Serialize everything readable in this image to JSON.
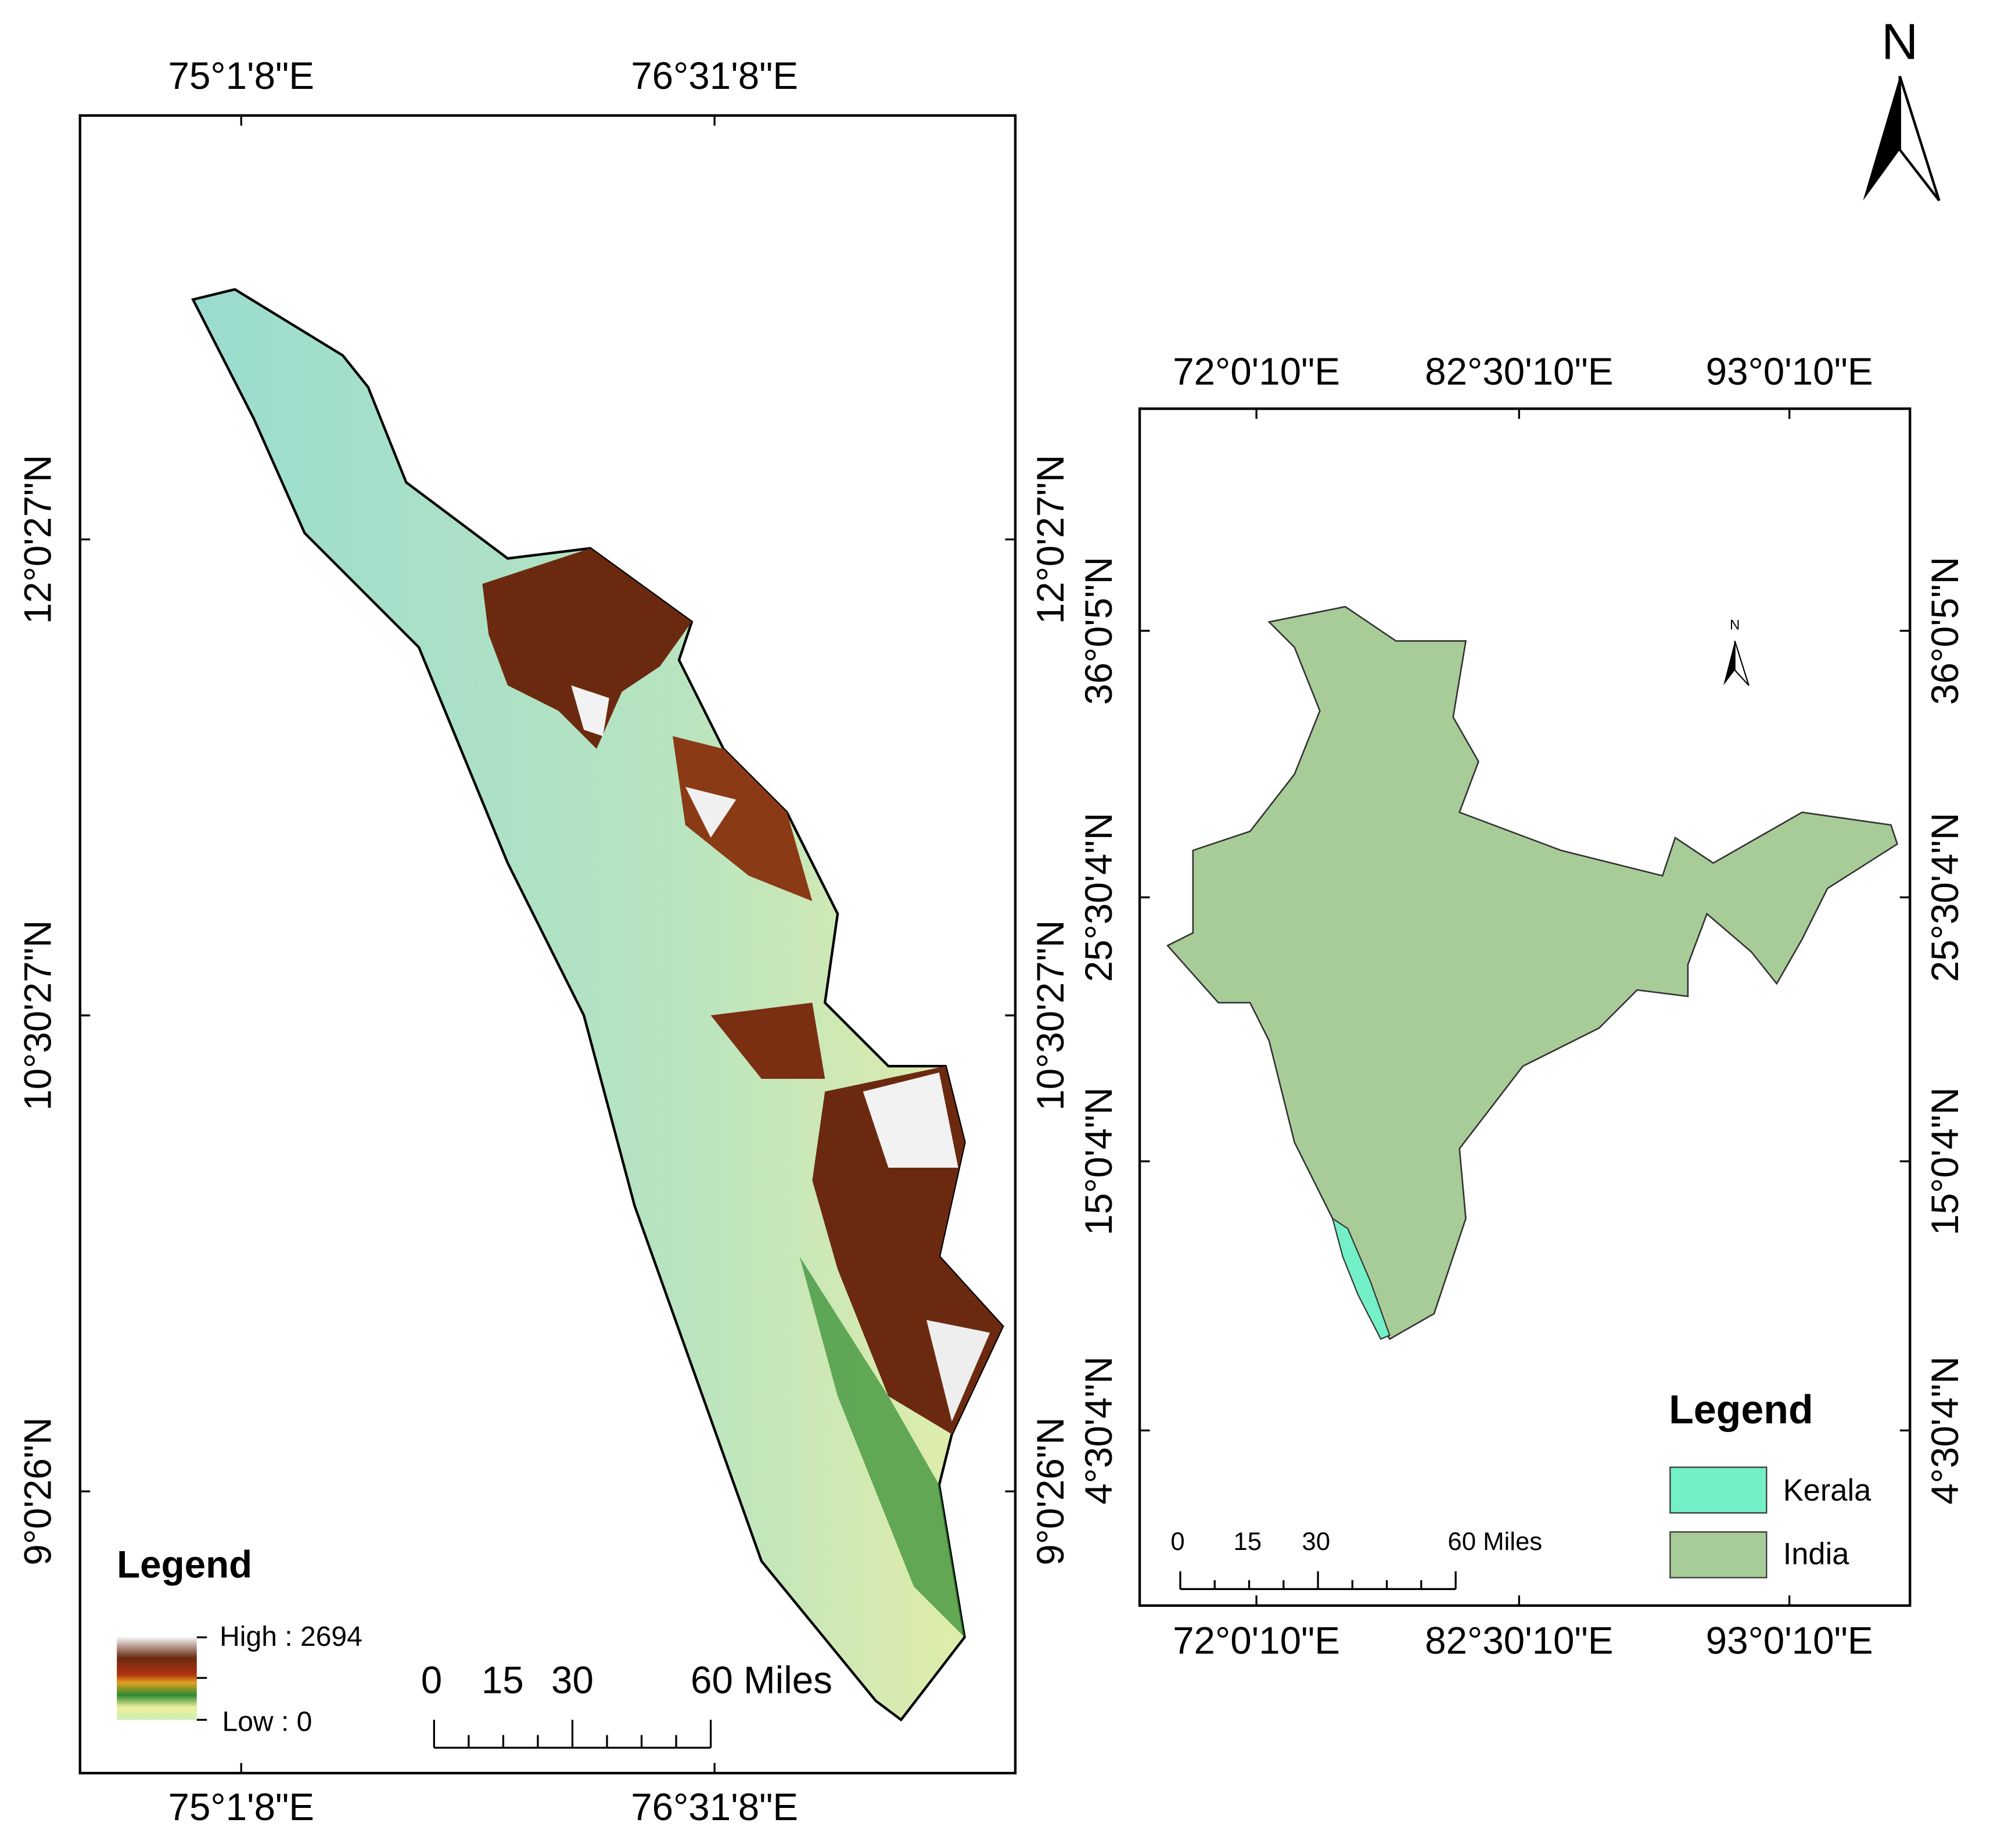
{
  "north_arrow": "N",
  "kerala_map": {
    "lon_labels": [
      "75°1'8\"E",
      "76°31'8\"E"
    ],
    "lat_labels": [
      "12°0'27\"N",
      "10°30'27\"N",
      "9°0'26\"N"
    ],
    "legend": {
      "title": "Legend",
      "high": "High : 2694",
      "low": "Low : 0"
    },
    "scale_bar": [
      "0",
      "15",
      "30",
      "60 Miles"
    ]
  },
  "india_map": {
    "lon_labels": [
      "72°0'10\"E",
      "82°30'10\"E",
      "93°0'10\"E"
    ],
    "lat_labels": [
      "36°0'5\"N",
      "25°30'4\"N",
      "15°0'4\"N",
      "4°30'4\"N"
    ],
    "north_arrow": "N",
    "legend": {
      "title": "Legend",
      "items": [
        "Kerala",
        "India"
      ]
    },
    "scale_bar": [
      "0",
      "15",
      "30",
      "60 Miles"
    ]
  }
}
